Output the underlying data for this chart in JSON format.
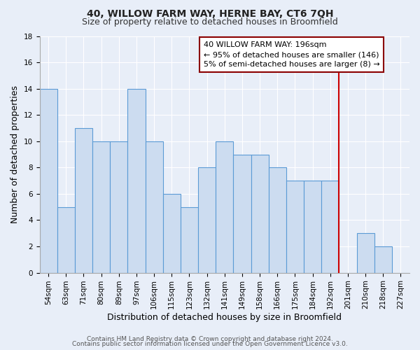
{
  "title": "40, WILLOW FARM WAY, HERNE BAY, CT6 7QH",
  "subtitle": "Size of property relative to detached houses in Broomfield",
  "xlabel": "Distribution of detached houses by size in Broomfield",
  "ylabel": "Number of detached properties",
  "categories": [
    "54sqm",
    "63sqm",
    "71sqm",
    "80sqm",
    "89sqm",
    "97sqm",
    "106sqm",
    "115sqm",
    "123sqm",
    "132sqm",
    "141sqm",
    "149sqm",
    "158sqm",
    "166sqm",
    "175sqm",
    "184sqm",
    "192sqm",
    "201sqm",
    "210sqm",
    "218sqm",
    "227sqm"
  ],
  "values": [
    14,
    5,
    11,
    10,
    10,
    14,
    10,
    6,
    5,
    8,
    10,
    9,
    9,
    8,
    7,
    7,
    7,
    0,
    3,
    2,
    0
  ],
  "bar_color": "#ccdcf0",
  "bar_edge_color": "#5b9bd5",
  "annotation_line1": "40 WILLOW FARM WAY: 196sqm",
  "annotation_line2": "← 95% of detached houses are smaller (146)",
  "annotation_line3": "5% of semi-detached houses are larger (8) →",
  "annotation_box_color": "#ffffff",
  "annotation_box_edge_color": "#8b0000",
  "vline_color": "#cc0000",
  "vline_x": 16.5,
  "ylim": [
    0,
    18
  ],
  "yticks": [
    0,
    2,
    4,
    6,
    8,
    10,
    12,
    14,
    16,
    18
  ],
  "footer_line1": "Contains HM Land Registry data © Crown copyright and database right 2024.",
  "footer_line2": "Contains public sector information licensed under the Open Government Licence v3.0.",
  "background_color": "#e8eef8",
  "plot_bg_color": "#e8eef8",
  "grid_color": "#ffffff",
  "title_fontsize": 10,
  "subtitle_fontsize": 9,
  "axis_label_fontsize": 9,
  "tick_fontsize": 7.5,
  "footer_fontsize": 6.5,
  "annot_fontsize": 8
}
